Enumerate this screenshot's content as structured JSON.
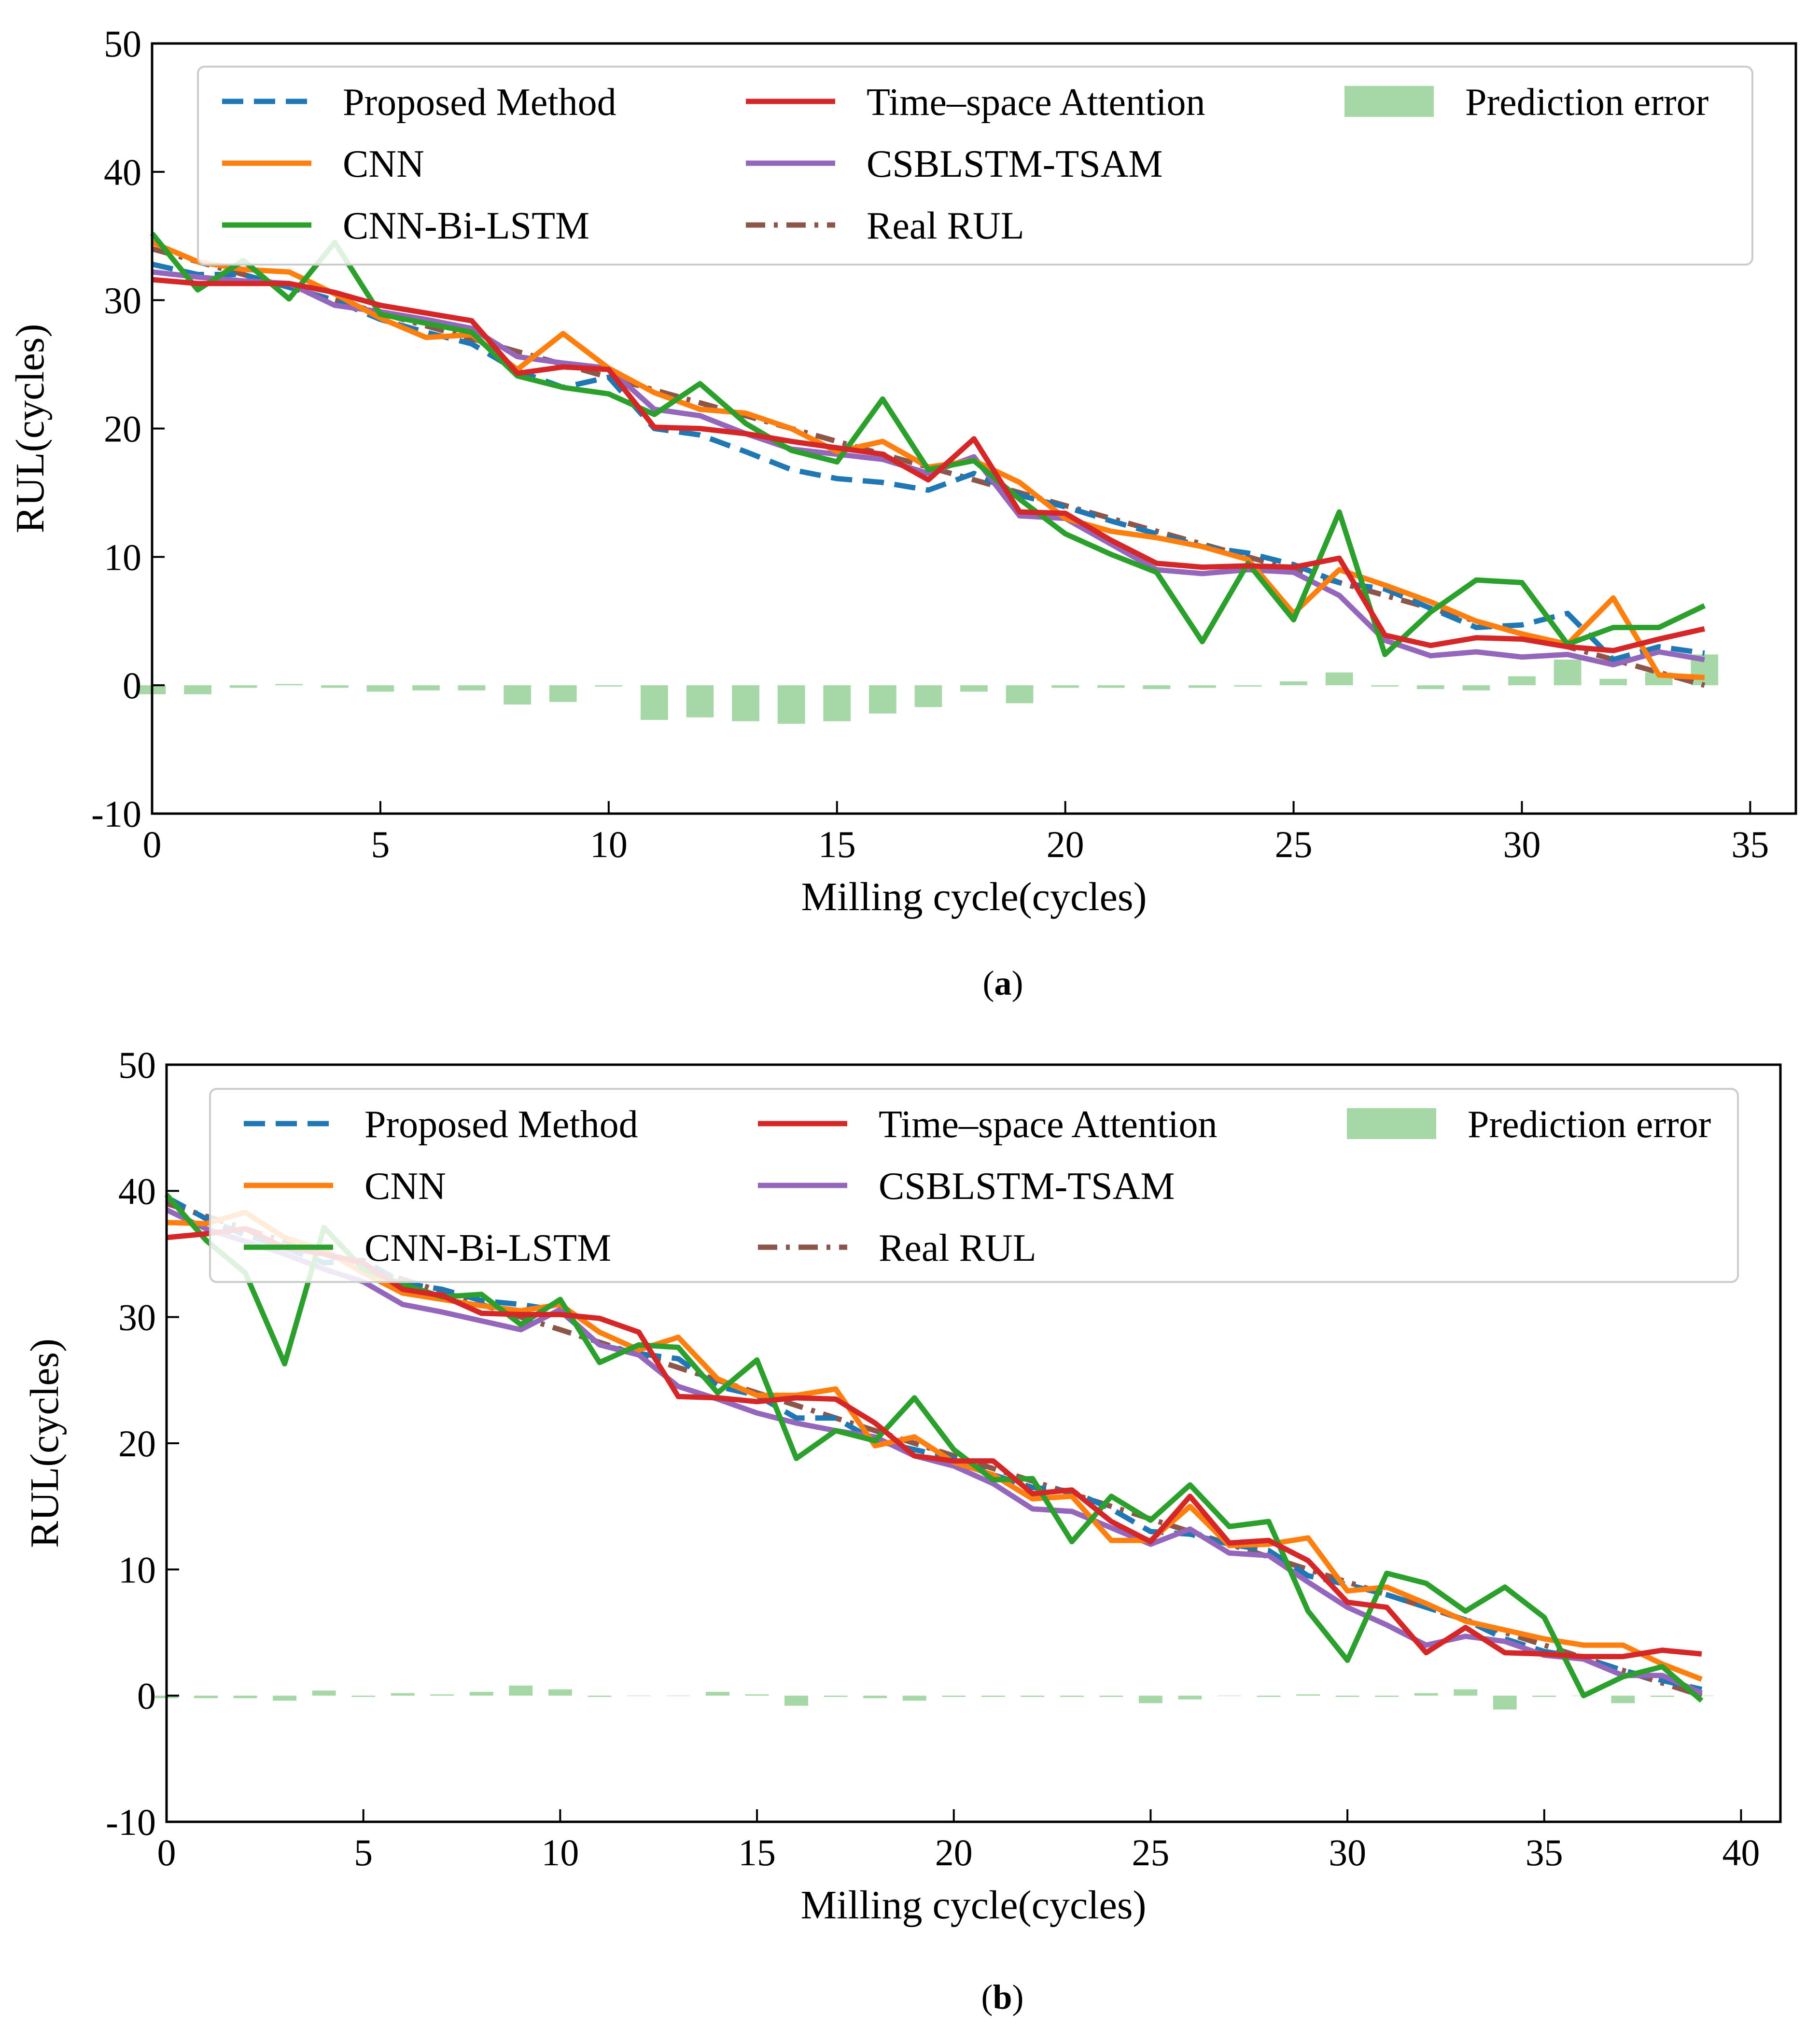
{
  "chart_data": [
    {
      "type": "line",
      "panel_label": "(a)",
      "caption_letter": "a",
      "xlabel": "Milling cycle(cycles)",
      "ylabel": "RUL(cycles)",
      "xlim": [
        0,
        36
      ],
      "ylim": [
        -10,
        50
      ],
      "xticks": [
        0,
        5,
        10,
        15,
        20,
        25,
        30,
        35
      ],
      "yticks": [
        -10,
        0,
        10,
        20,
        30,
        40,
        50
      ],
      "legend_position": "top",
      "legend": [
        {
          "key": "proposed",
          "label": "Proposed Method"
        },
        {
          "key": "cnn",
          "label": "CNN"
        },
        {
          "key": "cnnbilstm",
          "label": "CNN-Bi-LSTM"
        },
        {
          "key": "tsa",
          "label": "Time–space Attention"
        },
        {
          "key": "csblstm",
          "label": "CSBLSTM-TSAM"
        },
        {
          "key": "real",
          "label": "Real RUL"
        },
        {
          "key": "error",
          "label": "Prediction error"
        }
      ],
      "x": [
        0,
        1,
        2,
        3,
        4,
        5,
        6,
        7,
        8,
        9,
        10,
        11,
        12,
        13,
        14,
        15,
        16,
        17,
        18,
        19,
        20,
        21,
        22,
        23,
        24,
        25,
        26,
        27,
        28,
        29,
        30,
        31,
        32,
        33,
        34
      ],
      "series": [
        {
          "key": "real",
          "name": "Real RUL",
          "values": [
            34,
            33,
            32,
            31,
            30,
            29,
            28,
            27,
            26,
            25,
            24,
            23,
            22,
            21,
            20,
            19,
            18,
            17,
            16,
            15,
            14,
            13,
            12,
            11,
            10,
            9,
            8,
            7,
            6,
            5,
            4,
            3,
            2,
            1,
            0
          ]
        },
        {
          "key": "proposed",
          "name": "Proposed Method",
          "values": [
            32.8,
            32,
            32,
            31,
            30,
            28.5,
            27.5,
            26.6,
            24.5,
            23.2,
            24,
            20,
            19.5,
            18.2,
            16.8,
            16.1,
            15.8,
            15.2,
            16.5,
            14.8,
            13.9,
            12.8,
            11.8,
            10.8,
            10.3,
            9.4,
            8,
            7.5,
            6,
            4.5,
            4.7,
            5.6,
            2,
            3,
            2.5
          ]
        },
        {
          "key": "cnn",
          "name": "CNN",
          "values": [
            34.5,
            33,
            32.4,
            32.2,
            30.5,
            28.6,
            27.1,
            27.3,
            24.6,
            27.4,
            24.7,
            22.8,
            21.5,
            21.2,
            20,
            18.2,
            19,
            17,
            17.5,
            15.8,
            13,
            12,
            11.5,
            10.8,
            9.8,
            5.6,
            9,
            7.8,
            6.5,
            5,
            4,
            3.2,
            6.8,
            0.8,
            0.6
          ]
        },
        {
          "key": "cnnbilstm",
          "name": "CNN-Bi-LSTM",
          "values": [
            35.2,
            30.8,
            33.1,
            30.1,
            34.5,
            28.9,
            28.2,
            27.5,
            24.1,
            23.2,
            22.7,
            21.1,
            23.5,
            20.4,
            18.3,
            17.4,
            22.3,
            16.8,
            17.5,
            14.5,
            11.8,
            10.2,
            8.8,
            3.4,
            9.5,
            5.1,
            13.5,
            2.4,
            5.7,
            8.2,
            8,
            3.2,
            4.5,
            4.5,
            6.2
          ]
        },
        {
          "key": "tsa",
          "name": "Time–space Attention",
          "values": [
            31.6,
            31.3,
            31.3,
            31.3,
            30.6,
            29.6,
            29,
            28.4,
            24.3,
            24.8,
            24.6,
            20.1,
            20,
            19.6,
            19,
            18.5,
            18,
            16,
            19.2,
            13.5,
            13.4,
            11.3,
            9.5,
            9.2,
            9.3,
            9.2,
            9.9,
            3.9,
            3.1,
            3.7,
            3.6,
            3,
            2.7,
            3.6,
            4.4
          ]
        },
        {
          "key": "csblstm",
          "name": "CSBLSTM-TSAM",
          "values": [
            32.2,
            31.8,
            31.5,
            31.3,
            29.6,
            29.1,
            28.5,
            27.8,
            25.6,
            25.1,
            24.7,
            21.5,
            21,
            19.6,
            18.4,
            18,
            17.6,
            16.5,
            17.8,
            13.2,
            13,
            11,
            9,
            8.7,
            9,
            8.8,
            7,
            3.5,
            2.3,
            2.6,
            2.2,
            2.4,
            1.6,
            2.6,
            2
          ]
        }
      ],
      "prediction_error": [
        -0.7,
        -0.7,
        -0.2,
        0.1,
        -0.2,
        -0.5,
        -0.4,
        -0.4,
        -1.5,
        -1.3,
        -0.1,
        -2.7,
        -2.5,
        -2.8,
        -3,
        -2.8,
        -2.2,
        -1.7,
        -0.5,
        -1.4,
        -0.2,
        -0.2,
        -0.3,
        -0.2,
        -0.1,
        0.3,
        1,
        -0.1,
        -0.3,
        -0.4,
        0.7,
        2,
        0.5,
        1,
        2.4
      ]
    },
    {
      "type": "line",
      "panel_label": "(b)",
      "caption_letter": "b",
      "xlabel": "Milling cycle(cycles)",
      "ylabel": "RUL(cycles)",
      "xlim": [
        0,
        41
      ],
      "ylim": [
        -10,
        50
      ],
      "xticks": [
        0,
        5,
        10,
        15,
        20,
        25,
        30,
        35,
        40
      ],
      "yticks": [
        -10,
        0,
        10,
        20,
        30,
        40,
        50
      ],
      "legend_position": "top",
      "legend": [
        {
          "key": "proposed",
          "label": "Proposed Method"
        },
        {
          "key": "cnn",
          "label": "CNN"
        },
        {
          "key": "cnnbilstm",
          "label": "CNN-Bi-LSTM"
        },
        {
          "key": "tsa",
          "label": "Time–space Attention"
        },
        {
          "key": "csblstm",
          "label": "CSBLSTM-TSAM"
        },
        {
          "key": "real",
          "label": "Real RUL"
        },
        {
          "key": "error",
          "label": "Prediction error"
        }
      ],
      "x": [
        0,
        1,
        2,
        3,
        4,
        5,
        6,
        7,
        8,
        9,
        10,
        11,
        12,
        13,
        14,
        15,
        16,
        17,
        18,
        19,
        20,
        21,
        22,
        23,
        24,
        25,
        26,
        27,
        28,
        29,
        30,
        31,
        32,
        33,
        34,
        35,
        36,
        37,
        38,
        39
      ],
      "series": [
        {
          "key": "real",
          "name": "Real RUL",
          "values": [
            39,
            38,
            37,
            36,
            35,
            34,
            33,
            32,
            31,
            30,
            29,
            28,
            27,
            26,
            25,
            24,
            23,
            22,
            21,
            20,
            19,
            18,
            17,
            16,
            15,
            14,
            13,
            12,
            11,
            10,
            9,
            8,
            7,
            6,
            5,
            4,
            3,
            2,
            1,
            0
          ]
        },
        {
          "key": "proposed",
          "name": "Proposed Method",
          "values": [
            39.5,
            37.8,
            36.5,
            35.5,
            34.3,
            34.5,
            32.7,
            32.2,
            31.3,
            31,
            30.5,
            27.8,
            27.1,
            26.7,
            24.5,
            23.8,
            22,
            22,
            20.2,
            19.5,
            18.8,
            17.5,
            16.5,
            16.2,
            14.8,
            13,
            12.8,
            12,
            11.5,
            9.5,
            8.8,
            8,
            7,
            6,
            4.5,
            3.5,
            3,
            2,
            1.2,
            0.5
          ]
        },
        {
          "key": "cnn",
          "name": "CNN",
          "values": [
            37.5,
            37.4,
            38.3,
            36.3,
            35.3,
            33.5,
            31.9,
            31.4,
            30.9,
            30.5,
            31,
            28.8,
            27.4,
            28.4,
            25.1,
            23.8,
            23.8,
            24.3,
            19.8,
            20.5,
            18.5,
            17.5,
            15.6,
            15.8,
            12.3,
            12.3,
            15,
            11.9,
            12,
            12.5,
            8.3,
            8.6,
            7.3,
            5.9,
            5.2,
            4.5,
            4,
            4,
            2.5,
            1.3
          ]
        },
        {
          "key": "cnnbilstm",
          "name": "CNN-Bi-LSTM",
          "values": [
            39.7,
            36.1,
            33.5,
            26.3,
            37.1,
            33.8,
            32.6,
            31.6,
            31.8,
            29.4,
            31.4,
            26.4,
            27.8,
            27.6,
            24,
            26.6,
            18.8,
            21,
            20.2,
            23.6,
            19.5,
            17.1,
            17.2,
            12.2,
            15.8,
            13.9,
            16.7,
            13.4,
            13.8,
            6.7,
            2.8,
            9.7,
            8.9,
            6.7,
            8.6,
            6.2,
            0,
            1.5,
            2.3,
            -0.4
          ]
        },
        {
          "key": "tsa",
          "name": "Time–space Attention",
          "values": [
            36.3,
            36.6,
            37,
            35.5,
            35,
            34.3,
            32.2,
            31.7,
            30.3,
            30.2,
            30.2,
            29.9,
            28.8,
            23.7,
            23.6,
            23.3,
            23.6,
            23.5,
            21.6,
            19,
            18.6,
            18.6,
            16,
            16.3,
            13.8,
            12.2,
            15.8,
            12.1,
            12.3,
            10.7,
            7.4,
            7,
            3.4,
            5.4,
            3.4,
            3.3,
            3.1,
            3.1,
            3.6,
            3.3
          ]
        },
        {
          "key": "csblstm",
          "name": "CSBLSTM-TSAM",
          "values": [
            38.5,
            37,
            36,
            35,
            33.8,
            32.8,
            31,
            30.4,
            29.7,
            29,
            30.6,
            27.8,
            27,
            24.5,
            23.5,
            22.4,
            21.6,
            21,
            20.5,
            19,
            18.2,
            16.8,
            14.8,
            14.6,
            13.3,
            12,
            13.2,
            11.3,
            11.1,
            9,
            7,
            5.6,
            4,
            4.7,
            4.3,
            3.2,
            2.9,
            1.6,
            1.6,
            0.2
          ]
        }
      ],
      "prediction_error": [
        -0.2,
        -0.2,
        -0.2,
        -0.4,
        0.4,
        -0.1,
        0.2,
        0.1,
        0.3,
        0.8,
        0.5,
        -0.1,
        0,
        0,
        0.3,
        0.1,
        -0.8,
        -0.1,
        -0.2,
        -0.4,
        -0.1,
        -0.1,
        -0.1,
        -0.1,
        -0.1,
        -0.6,
        -0.3,
        0,
        -0.1,
        0.1,
        -0.1,
        -0.1,
        0.2,
        0.5,
        -1.1,
        -0.1,
        0,
        -0.6,
        -0.1,
        0
      ]
    }
  ],
  "colors": {
    "proposed": "#1f77b4",
    "cnn": "#ff7f0e",
    "cnnbilstm": "#2ca02c",
    "tsa": "#d62728",
    "csblstm": "#9467bd",
    "real": "#8c564b",
    "error": "#2ca02c"
  }
}
